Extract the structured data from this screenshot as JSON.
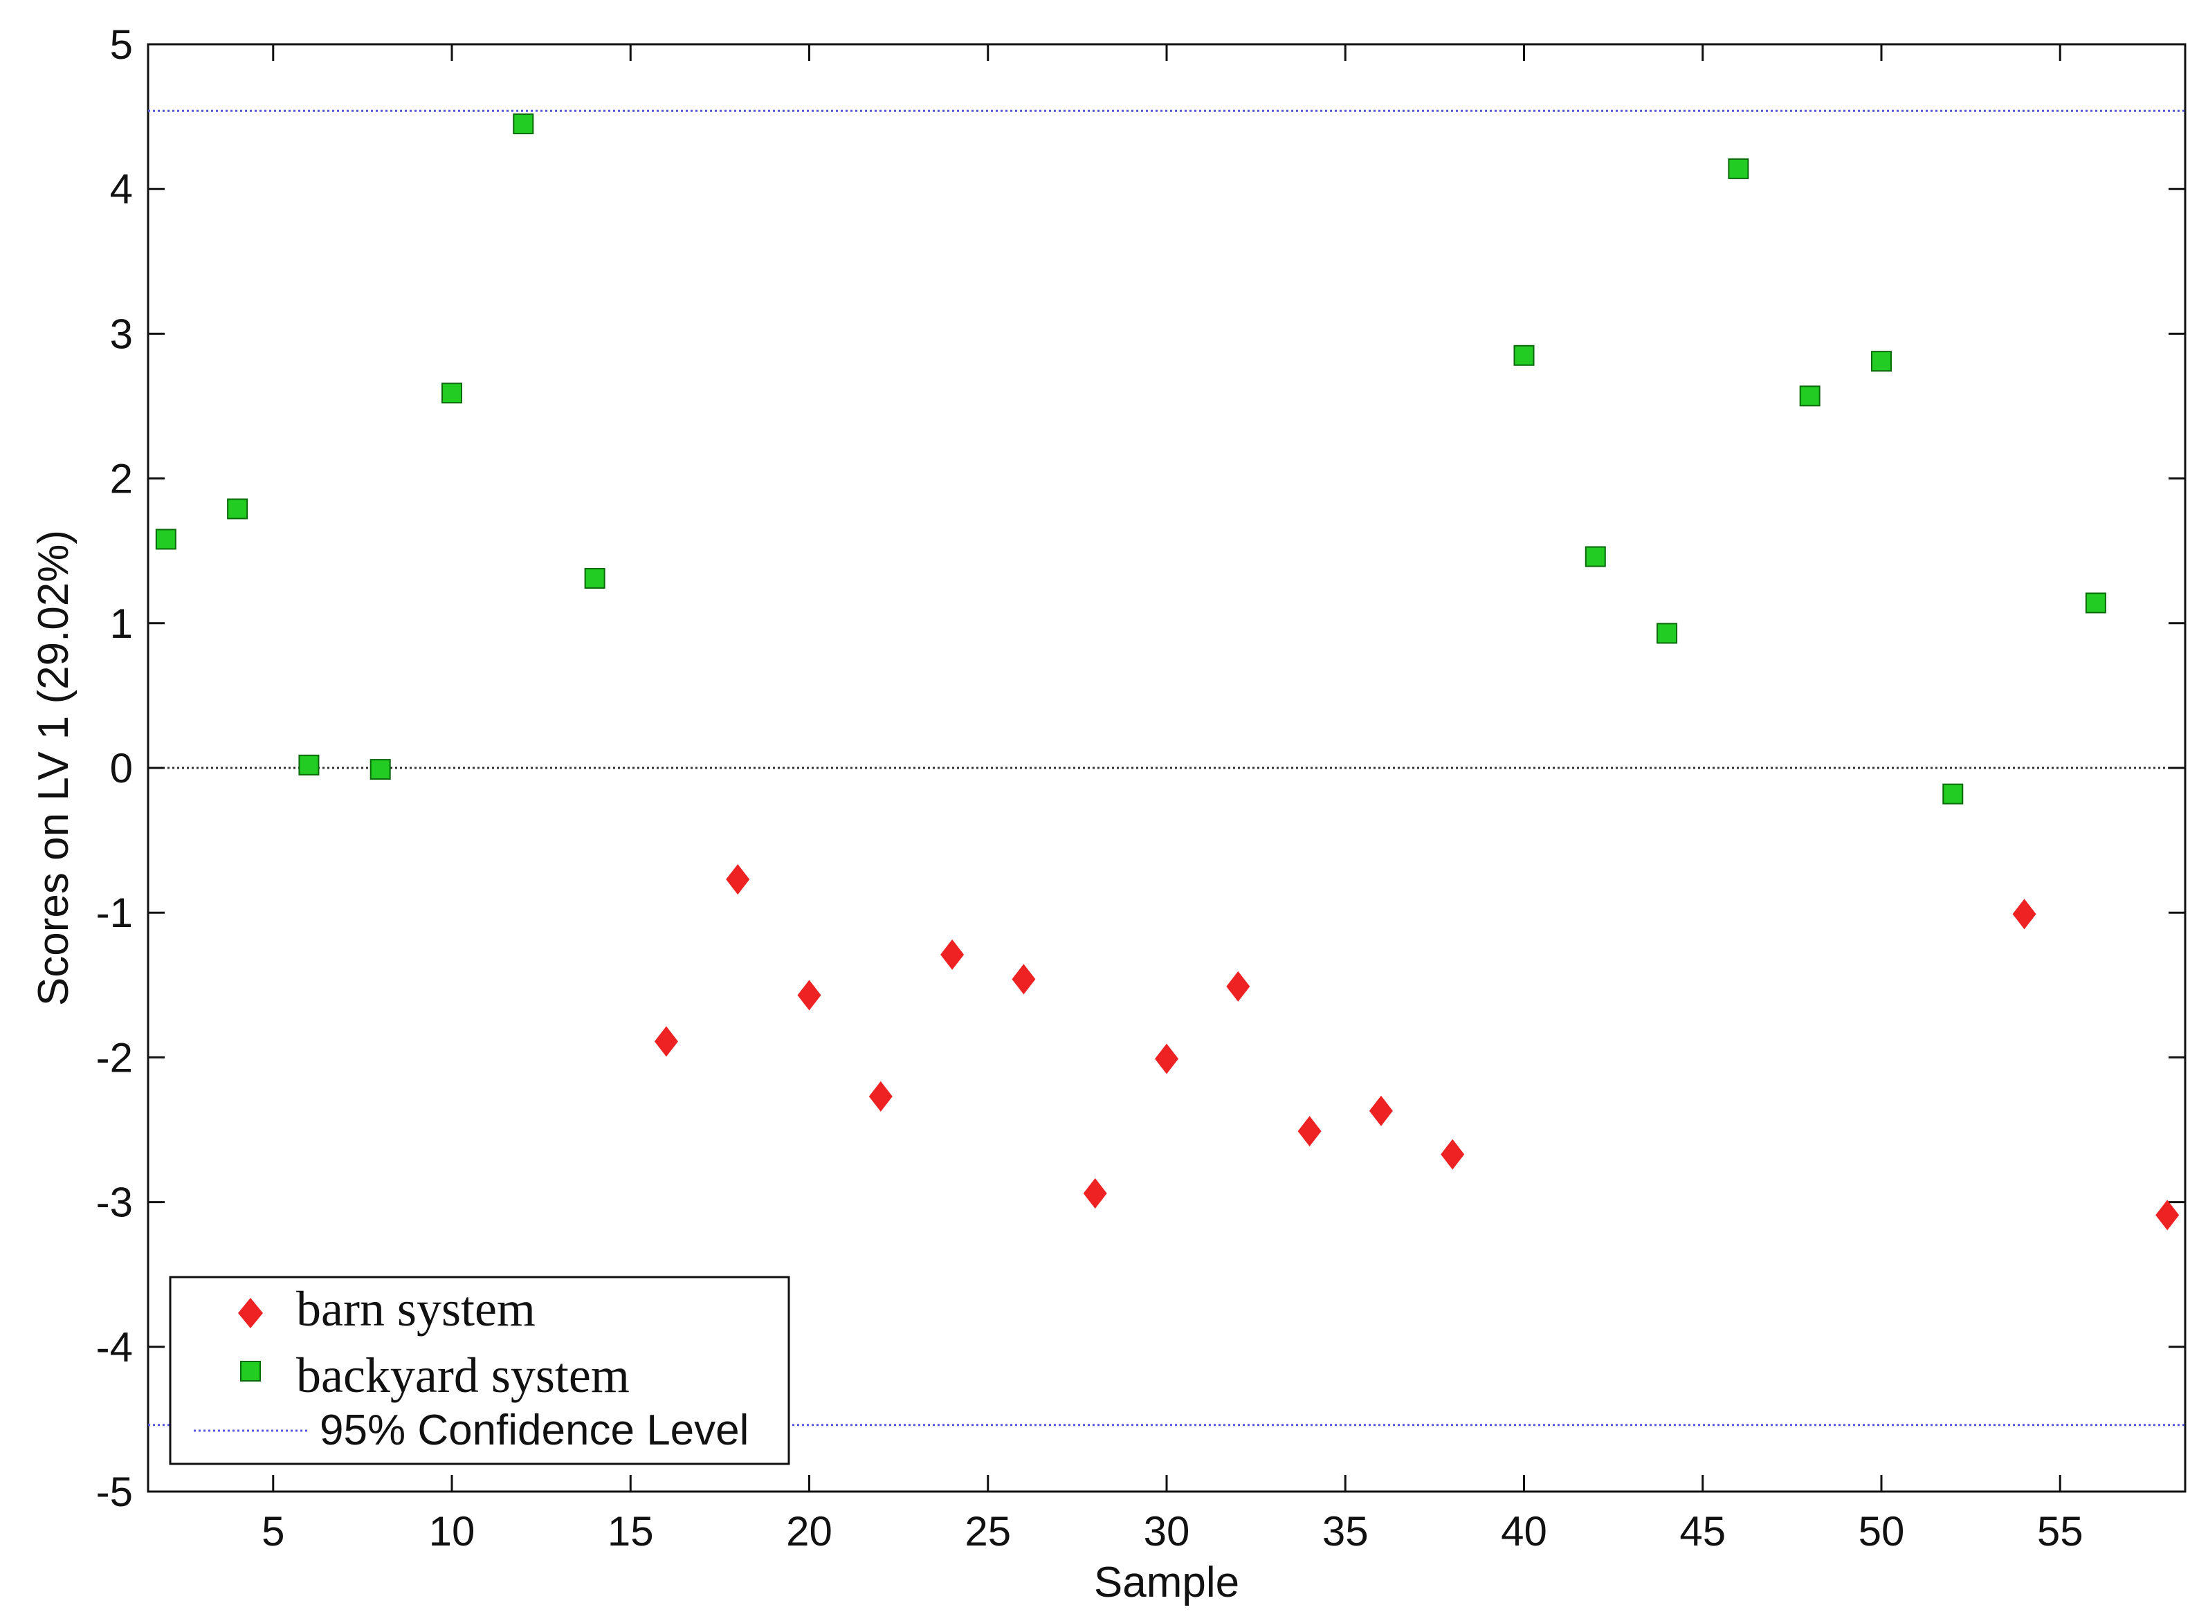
{
  "chart_data": {
    "type": "scatter",
    "title": "",
    "xlabel": "Sample",
    "ylabel": "Scores on LV 1 (29.02%)",
    "xlim": [
      1.5,
      58.5
    ],
    "ylim": [
      -5,
      5
    ],
    "xticks": [
      5,
      10,
      15,
      20,
      25,
      30,
      35,
      40,
      45,
      50,
      55
    ],
    "yticks": [
      -5,
      -4,
      -3,
      -2,
      -1,
      0,
      1,
      2,
      3,
      4,
      5
    ],
    "grid": false,
    "legend_position": "bottom-left",
    "series": [
      {
        "name": "barn system",
        "marker": "diamond",
        "color": "#ee2222",
        "points": [
          {
            "x": 16,
            "y": -1.89
          },
          {
            "x": 18,
            "y": -0.77
          },
          {
            "x": 20,
            "y": -1.57
          },
          {
            "x": 22,
            "y": -2.27
          },
          {
            "x": 24,
            "y": -1.29
          },
          {
            "x": 26,
            "y": -1.46
          },
          {
            "x": 28,
            "y": -2.94
          },
          {
            "x": 30,
            "y": -2.01
          },
          {
            "x": 32,
            "y": -1.51
          },
          {
            "x": 34,
            "y": -2.51
          },
          {
            "x": 36,
            "y": -2.37
          },
          {
            "x": 38,
            "y": -2.67
          },
          {
            "x": 54,
            "y": -1.01
          },
          {
            "x": 58,
            "y": -3.09
          }
        ]
      },
      {
        "name": "backyard system",
        "marker": "square",
        "color": "#22cc22",
        "points": [
          {
            "x": 2,
            "y": 1.58
          },
          {
            "x": 4,
            "y": 1.79
          },
          {
            "x": 6,
            "y": 0.02
          },
          {
            "x": 8,
            "y": -0.01
          },
          {
            "x": 10,
            "y": 2.59
          },
          {
            "x": 12,
            "y": 4.45
          },
          {
            "x": 14,
            "y": 1.31
          },
          {
            "x": 40,
            "y": 2.85
          },
          {
            "x": 42,
            "y": 1.46
          },
          {
            "x": 44,
            "y": 0.93
          },
          {
            "x": 46,
            "y": 4.14
          },
          {
            "x": 48,
            "y": 2.57
          },
          {
            "x": 50,
            "y": 2.81
          },
          {
            "x": 52,
            "y": -0.18
          },
          {
            "x": 56,
            "y": 1.14
          }
        ]
      }
    ],
    "reference_lines": [
      {
        "name": "95% Confidence Level",
        "y": [
          4.54,
          -4.54
        ],
        "style": "dotted",
        "color": "#5555dd"
      },
      {
        "y": 0,
        "style": "dotted",
        "color": "#333333"
      }
    ]
  }
}
